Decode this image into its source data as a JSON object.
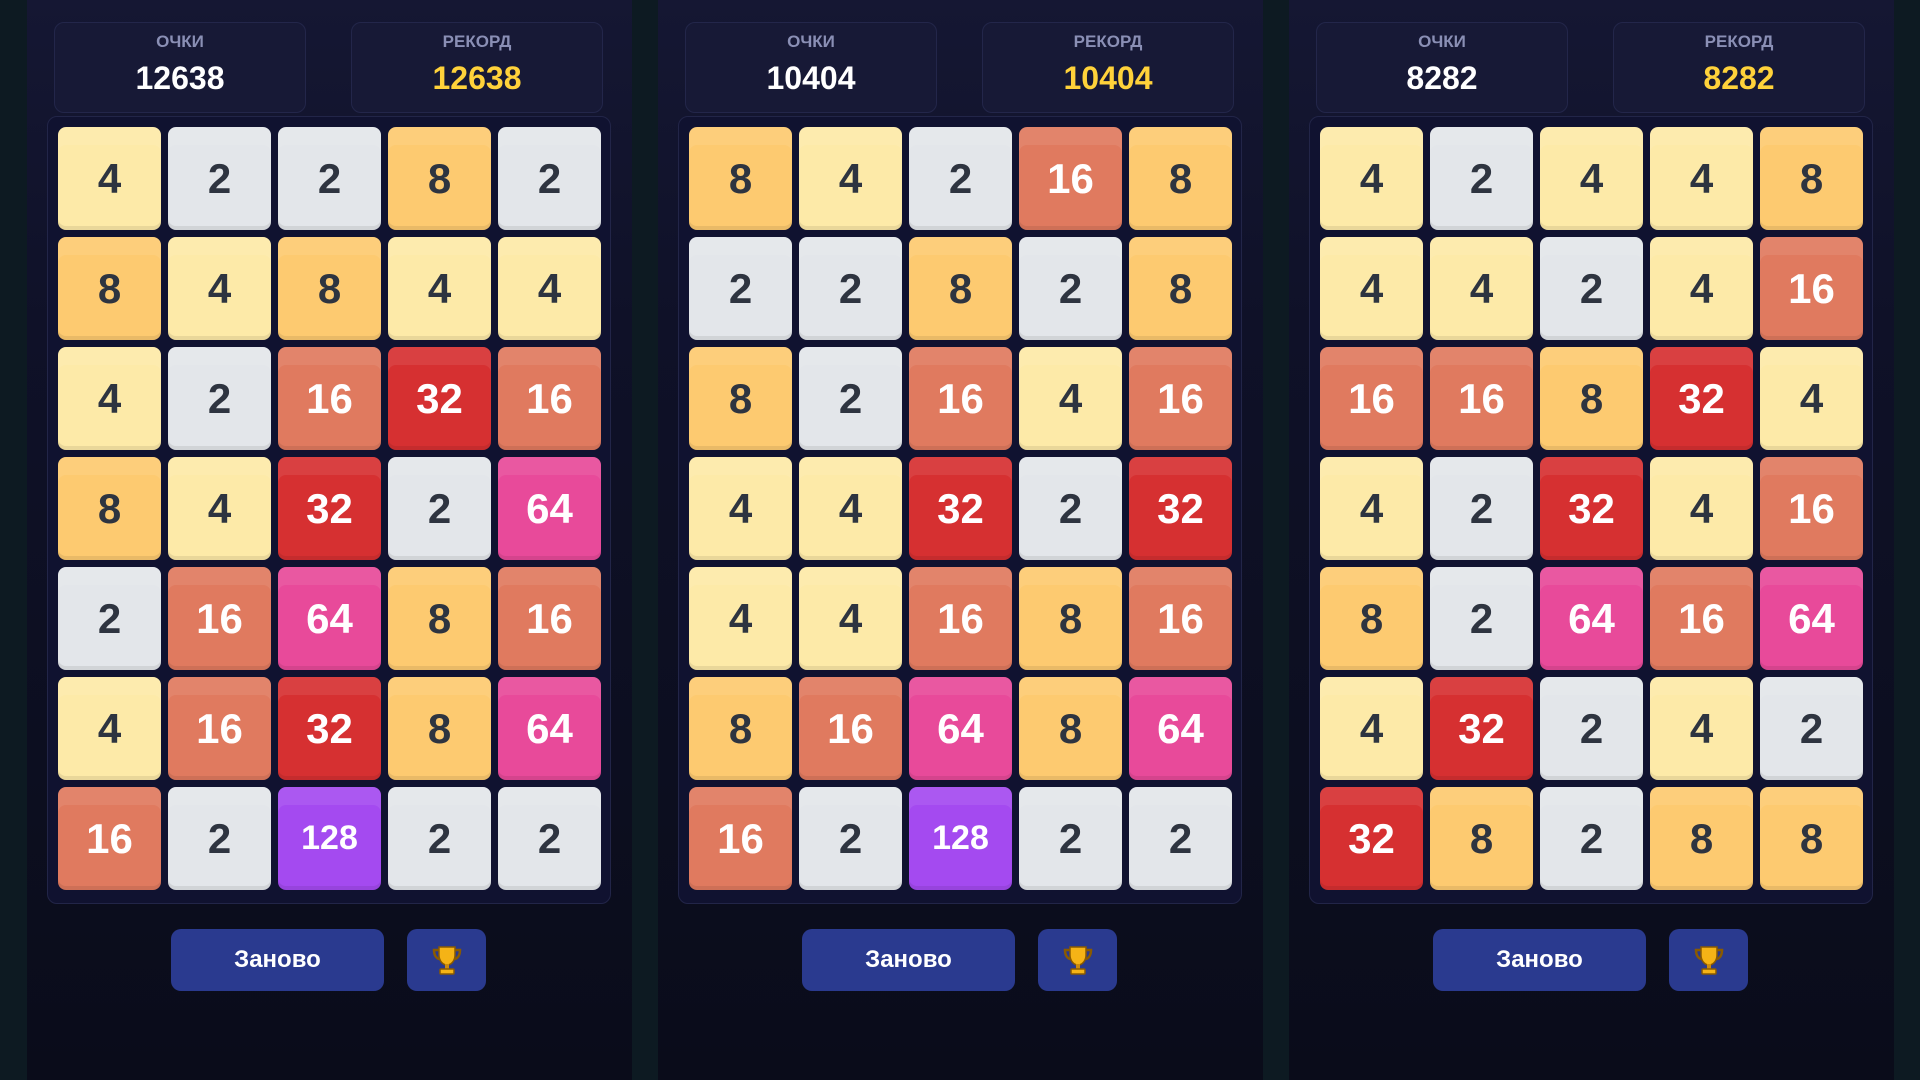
{
  "panels": [
    {
      "score_label": "ОЧКИ",
      "score": 12638,
      "best_label": "РЕКОРД",
      "best": 12638,
      "restart": "Заново",
      "grid": [
        [
          4,
          2,
          2,
          8,
          2
        ],
        [
          8,
          4,
          8,
          4,
          4
        ],
        [
          4,
          2,
          16,
          32,
          16
        ],
        [
          8,
          4,
          32,
          2,
          64
        ],
        [
          2,
          16,
          64,
          8,
          16
        ],
        [
          4,
          16,
          32,
          8,
          64
        ],
        [
          16,
          2,
          128,
          2,
          2
        ]
      ]
    },
    {
      "score_label": "ОЧКИ",
      "score": 10404,
      "best_label": "РЕКОРД",
      "best": 10404,
      "restart": "Заново",
      "grid": [
        [
          8,
          4,
          2,
          16,
          8
        ],
        [
          2,
          2,
          8,
          2,
          8
        ],
        [
          8,
          2,
          16,
          4,
          16
        ],
        [
          4,
          4,
          32,
          2,
          32
        ],
        [
          4,
          4,
          16,
          8,
          16
        ],
        [
          8,
          16,
          64,
          8,
          64
        ],
        [
          16,
          2,
          128,
          2,
          2
        ]
      ]
    },
    {
      "score_label": "ОЧКИ",
      "score": 8282,
      "best_label": "РЕКОРД",
      "best": 8282,
      "restart": "Заново",
      "grid": [
        [
          4,
          2,
          4,
          4,
          8
        ],
        [
          4,
          4,
          2,
          4,
          16
        ],
        [
          16,
          16,
          8,
          32,
          4
        ],
        [
          4,
          2,
          32,
          4,
          16
        ],
        [
          8,
          2,
          64,
          16,
          64
        ],
        [
          4,
          32,
          2,
          4,
          2
        ],
        [
          32,
          8,
          2,
          8,
          8
        ]
      ]
    }
  ]
}
